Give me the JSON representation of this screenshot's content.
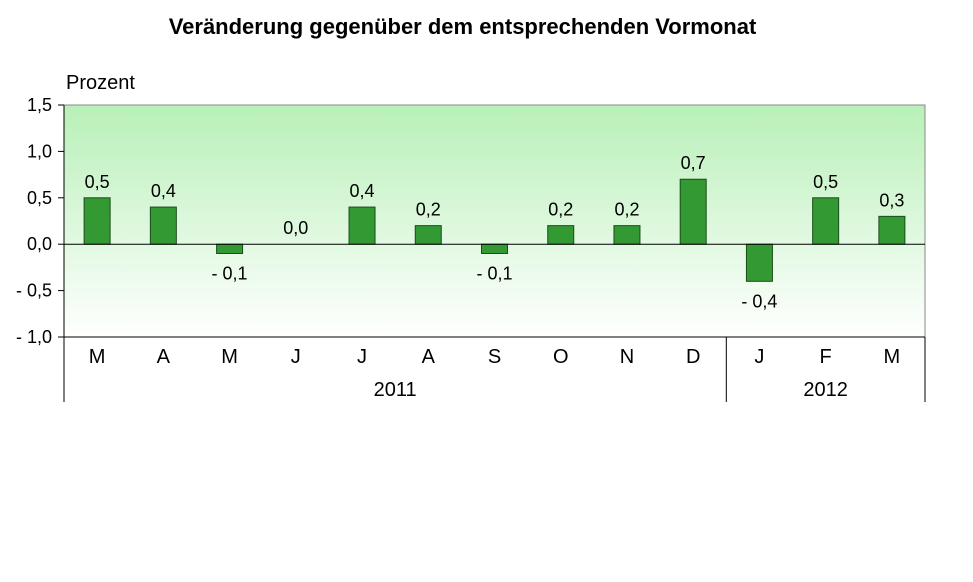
{
  "chart_data": {
    "type": "bar",
    "title": "Veränderung gegenüber dem entsprechenden Vormonat",
    "ylabel": "Prozent",
    "xlabel": "",
    "categories": [
      "M",
      "A",
      "M",
      "J",
      "J",
      "A",
      "S",
      "O",
      "N",
      "D",
      "J",
      "F",
      "M"
    ],
    "values": [
      0.5,
      0.4,
      -0.1,
      0.0,
      0.4,
      0.2,
      -0.1,
      0.2,
      0.2,
      0.7,
      -0.4,
      0.5,
      0.3
    ],
    "value_labels": [
      "0,5",
      "0,4",
      "- 0,1",
      "0,0",
      "0,4",
      "0,2",
      "- 0,1",
      "0,2",
      "0,2",
      "0,7",
      "- 0,4",
      "0,5",
      "0,3"
    ],
    "groups": [
      {
        "label": "2011",
        "count": 10
      },
      {
        "label": "2012",
        "count": 3
      }
    ],
    "ylim": [
      -1.0,
      1.5
    ],
    "yticks": [
      1.5,
      1.0,
      0.5,
      0.0,
      -0.5,
      -1.0
    ],
    "ytick_labels": [
      "1,5",
      "1,0",
      "0,5",
      "0,0",
      "- 0,5",
      "- 1,0"
    ],
    "grid": false,
    "legend": "none",
    "colors": {
      "bar_fill": "#339933",
      "bar_stroke": "#1a4d1a",
      "plot_bg_top": "#b8f0b8",
      "plot_bg_bottom": "#ffffff"
    }
  }
}
